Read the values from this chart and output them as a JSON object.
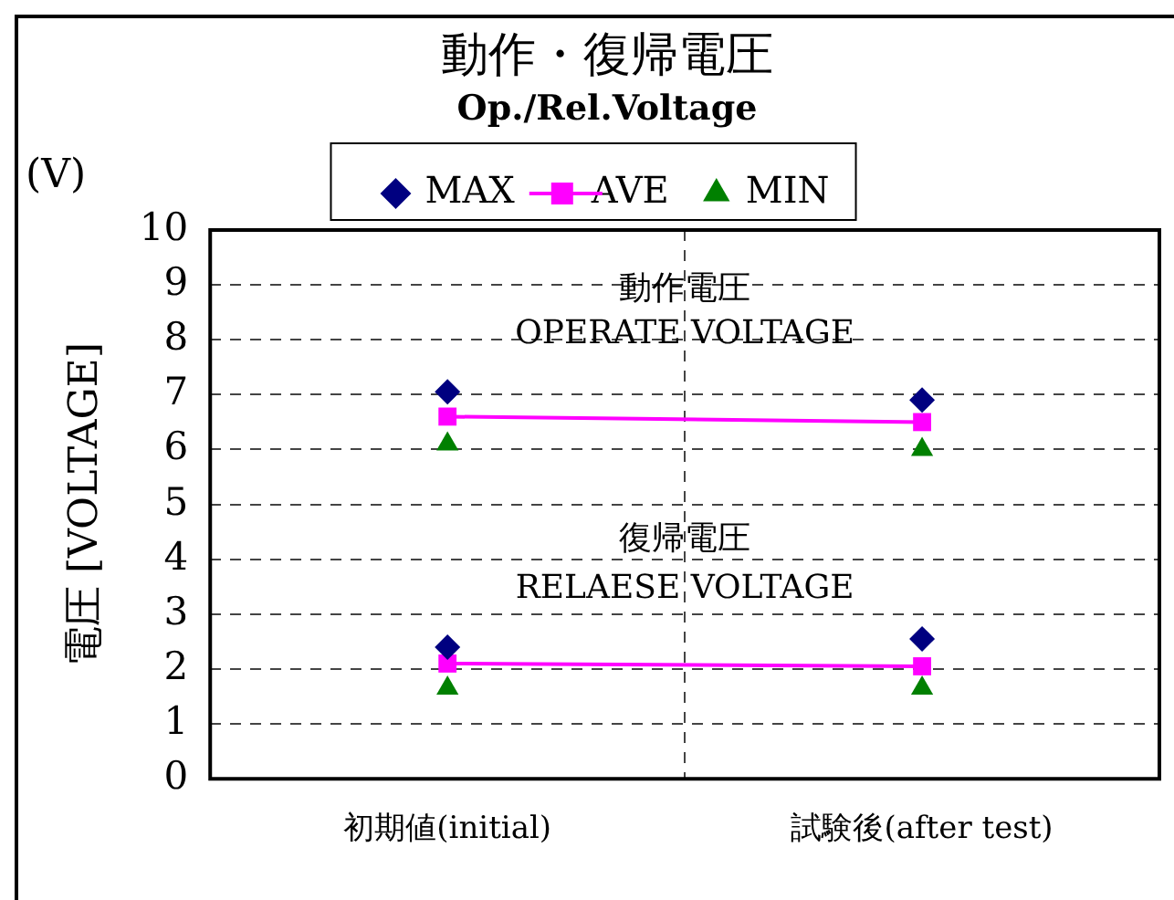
{
  "chart_data": {
    "type": "scatter",
    "title": "動作・復帰電圧",
    "subtitle": "Op./Rel.Voltage",
    "ylabel": "電圧 [VOLTAGE]",
    "annotations": [
      "(V)",
      "動作電圧",
      "OPERATE VOLTAGE",
      "復帰電圧",
      "RELAESE VOLTAGE"
    ],
    "categories": [
      "初期値(initial)",
      "試験後(after test)"
    ],
    "series": [
      {
        "name": "MAX",
        "marker": "diamond",
        "color": "#000080",
        "values": [
          7.05,
          6.9
        ]
      },
      {
        "name": "AVE",
        "type": "line",
        "marker": "square",
        "color": "#ff00ff",
        "values": [
          6.6,
          6.5
        ]
      },
      {
        "name": "MIN",
        "marker": "triangle",
        "color": "#008000",
        "values": [
          6.1,
          6.0
        ]
      },
      {
        "marker": "diamond",
        "color": "#000080",
        "values": [
          2.4,
          2.55
        ]
      },
      {
        "type": "line",
        "marker": "square",
        "color": "#ff00ff",
        "values": [
          2.1,
          2.05
        ]
      },
      {
        "marker": "triangle",
        "color": "#008000",
        "values": [
          1.65,
          1.65
        ]
      }
    ],
    "ylim": [
      0,
      10
    ],
    "yticks": [
      0,
      1,
      2,
      3,
      4,
      5,
      6,
      7,
      8,
      9,
      10
    ],
    "grid": true,
    "legend": "top",
    "line_style": "solid"
  }
}
